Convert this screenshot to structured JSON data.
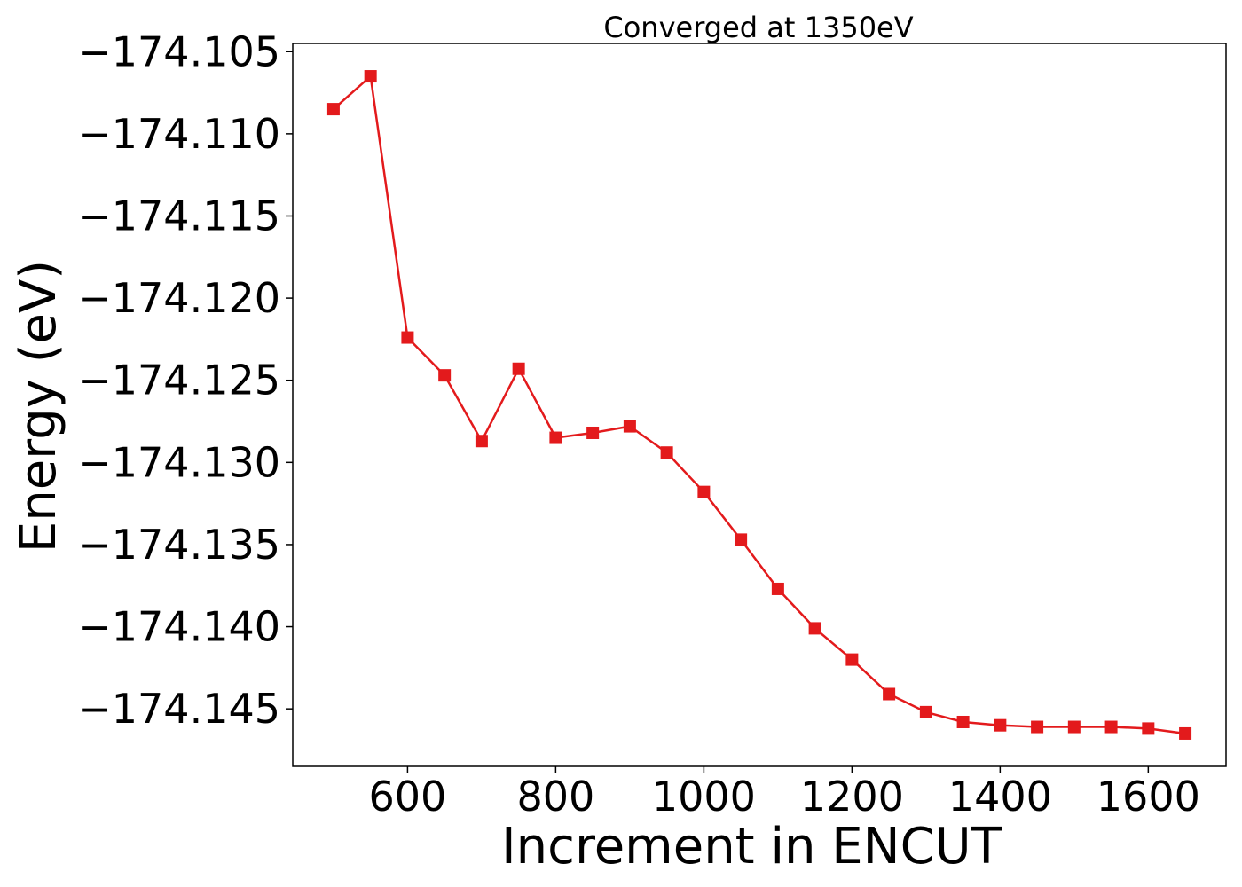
{
  "chart_data": {
    "type": "line",
    "title": "Converged at 1350eV",
    "xlabel": "Increment in ENCUT",
    "ylabel": "Energy (eV)",
    "xlim": [
      445,
      1705
    ],
    "ylim": [
      -174.1485,
      -174.1045
    ],
    "xticks": [
      600,
      800,
      1000,
      1200,
      1400,
      1600
    ],
    "xtick_labels": [
      "600",
      "800",
      "1000",
      "1200",
      "1400",
      "1600"
    ],
    "yticks": [
      -174.105,
      -174.11,
      -174.115,
      -174.12,
      -174.125,
      -174.13,
      -174.135,
      -174.14,
      -174.145
    ],
    "ytick_labels": [
      "−174.105",
      "−174.110",
      "−174.115",
      "−174.120",
      "−174.125",
      "−174.130",
      "−174.135",
      "−174.140",
      "−174.145"
    ],
    "grid": false,
    "legend": "none",
    "series": [
      {
        "color": "#e31a1c",
        "marker": "square",
        "x": [
          500,
          550,
          600,
          650,
          700,
          750,
          800,
          850,
          900,
          950,
          1000,
          1050,
          1100,
          1150,
          1200,
          1250,
          1300,
          1350,
          1400,
          1450,
          1500,
          1550,
          1600,
          1650
        ],
        "y": [
          -174.1085,
          -174.1065,
          -174.1224,
          -174.1247,
          -174.1287,
          -174.1243,
          -174.1285,
          -174.1282,
          -174.1278,
          -174.1294,
          -174.1318,
          -174.1347,
          -174.1377,
          -174.1401,
          -174.142,
          -174.1441,
          -174.1452,
          -174.1458,
          -174.146,
          -174.1461,
          -174.1461,
          -174.1461,
          -174.1462,
          -174.1465
        ]
      }
    ]
  }
}
